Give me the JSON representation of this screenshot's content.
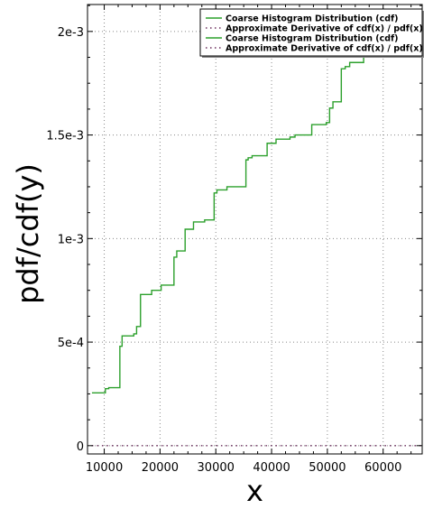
{
  "chart_data": {
    "type": "line",
    "title": "",
    "xlabel": "x",
    "ylabel": "pdf/cdf(y)",
    "xlim": [
      7000,
      67000
    ],
    "ylim": [
      -4e-05,
      0.00213
    ],
    "x_ticks": [
      10000,
      20000,
      30000,
      40000,
      50000,
      60000
    ],
    "x_tick_labels": [
      "10000",
      "20000",
      "30000",
      "40000",
      "50000",
      "60000"
    ],
    "y_ticks": [
      0,
      0.0005,
      0.001,
      0.0015,
      0.002
    ],
    "y_tick_labels": [
      "0",
      "5e-4",
      "1e-3",
      "1.5e-3",
      "2e-3"
    ],
    "grid": true,
    "legend_position": "top-right",
    "legend": [
      {
        "label": "Coarse Histogram Distribution (cdf)",
        "color": "#2ca02c",
        "style": "solid"
      },
      {
        "label": "Approximate Derivative of cdf(x) / pdf(x)",
        "color": "#6b2d5c",
        "style": "dotted"
      },
      {
        "label": "Coarse Histogram Distribution (cdf)",
        "color": "#2ca02c",
        "style": "solid"
      },
      {
        "label": "Approximate Derivative of cdf(x) / pdf(x)",
        "color": "#6b2d5c",
        "style": "dotted"
      }
    ],
    "series": [
      {
        "color": "#2ca02c",
        "style": "step",
        "x": [
          7800,
          10200,
          10800,
          12800,
          13200,
          15300,
          15800,
          16500,
          18500,
          20200,
          22500,
          23000,
          24500,
          26000,
          28000,
          29700,
          30200,
          32000,
          35400,
          35800,
          36500,
          39200,
          40800,
          43300,
          44200,
          47200,
          49800,
          50400,
          51000,
          52500,
          53200,
          54000,
          56500,
          67000
        ],
        "y": [
          0.000255,
          0.000275,
          0.00028,
          0.00048,
          0.00053,
          0.00054,
          0.000575,
          0.00073,
          0.00075,
          0.000775,
          0.00091,
          0.00094,
          0.001045,
          0.00108,
          0.00109,
          0.00122,
          0.001235,
          0.00125,
          0.00138,
          0.00139,
          0.0014,
          0.00146,
          0.00148,
          0.00149,
          0.0015,
          0.00155,
          0.00156,
          0.00163,
          0.00166,
          0.00182,
          0.00183,
          0.00185,
          0.00188,
          0.00188
        ]
      },
      {
        "color": "#6b2d5c",
        "style": "dotted",
        "x": [
          7800,
          67000
        ],
        "y": [
          0,
          0
        ]
      }
    ]
  }
}
